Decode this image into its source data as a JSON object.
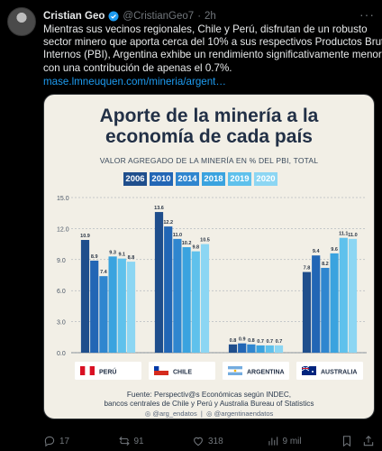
{
  "tweet": {
    "author_name": "Cristian Geo",
    "handle": "@CristianGeo7",
    "separator": "·",
    "time": "2h",
    "text_lines": [
      "Mientras sus vecinos regionales, Chile y Perú, disfrutan de un robusto",
      "sector minero que aporta cerca del 10% a sus respectivos Productos Brutos",
      "Internos (PBI), Argentina exhibe un rendimiento significativamente menor,",
      "con una contribución de apenas el 0.7%."
    ],
    "link": "mase.lmneuquen.com/mineria/argent…",
    "stats": {
      "replies": "17",
      "reposts": "91",
      "likes": "318",
      "views": "9 mil"
    }
  },
  "chart_data": {
    "type": "bar",
    "title_lines": [
      "Aporte de la minería a la",
      "economía de cada país"
    ],
    "subtitle": "VALOR AGREGADO DE LA MINERÍA EN % DEL PBI, TOTAL",
    "ylim": [
      0,
      15
    ],
    "yticks": [
      "0.0",
      "3.0",
      "6.0",
      "9.0",
      "12.0",
      "15.0"
    ],
    "categories": [
      "PERÚ",
      "CHILE",
      "ARGENTINA",
      "AUSTRALIA"
    ],
    "series": [
      {
        "name": "2006",
        "color": "#1f4e8c",
        "values": [
          10.9,
          13.6,
          0.8,
          7.8
        ]
      },
      {
        "name": "2010",
        "color": "#2266b5",
        "values": [
          8.9,
          12.2,
          0.9,
          9.4
        ]
      },
      {
        "name": "2014",
        "color": "#2f86cf",
        "values": [
          7.4,
          11.0,
          0.8,
          8.2
        ]
      },
      {
        "name": "2018",
        "color": "#3aa3df",
        "values": [
          9.3,
          10.2,
          0.7,
          9.6
        ]
      },
      {
        "name": "2019",
        "color": "#5fc1ec",
        "values": [
          9.1,
          9.8,
          0.7,
          11.1
        ]
      },
      {
        "name": "2020",
        "color": "#8cd6f3",
        "values": [
          8.8,
          10.5,
          0.7,
          11.0
        ]
      }
    ],
    "value_labels": [
      [
        "10.9",
        "13.6",
        "0.8",
        "7.8"
      ],
      [
        "8.9",
        "12.2",
        "0.9",
        "9.4"
      ],
      [
        "7.4",
        "11.0",
        "0.8",
        "8.2"
      ],
      [
        "9.3",
        "10.2",
        "0.7",
        "9.6"
      ],
      [
        "9.1",
        "9.8",
        "0.7",
        "11.1"
      ],
      [
        "8.8",
        "10.5",
        "0.7",
        "11.0"
      ]
    ],
    "flags": [
      "flag-peru",
      "flag-chile",
      "flag-argentina",
      "flag-australia"
    ],
    "source_lines": [
      "Fuente: Perspectiv@s Económicas según INDEC,",
      "bancos centrales de Chile y Perú y Australia Bureau of Statistics"
    ],
    "social": [
      "@arg_endatos",
      "@argentinaendatos"
    ],
    "colors": {
      "background": "#f2efe6",
      "title": "#223046",
      "axis": "#98a2ad"
    }
  }
}
